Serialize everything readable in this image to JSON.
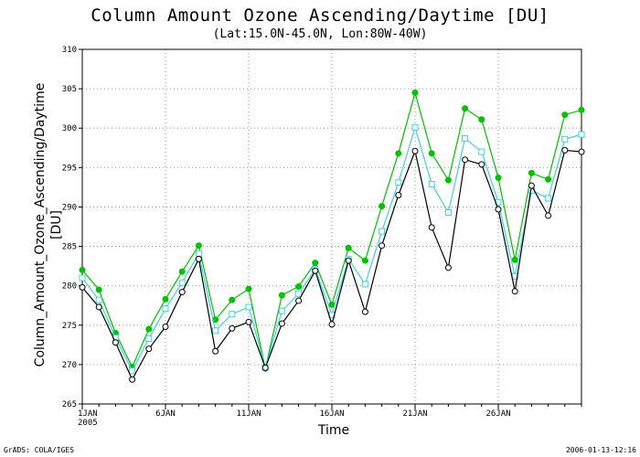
{
  "header": {
    "title": "Column Amount Ozone Ascending/Daytime [DU]",
    "subtitle": "(Lat:15.0N-45.0N, Lon:80W-40W)"
  },
  "footer": {
    "left": "GrADS: COLA/IGES",
    "right": "2006-01-13-12:16"
  },
  "chart_data": {
    "type": "line",
    "xlabel": "Time",
    "ylabel": "Column_Amount_Ozone_Ascending/Daytime",
    "ylabel_unit": "[DU]",
    "ylim": [
      265,
      310
    ],
    "yticks": [
      265,
      270,
      275,
      280,
      285,
      290,
      295,
      300,
      305,
      310
    ],
    "xlim": [
      1,
      31
    ],
    "xticks": [
      {
        "day": 1,
        "label": "1JAN",
        "sublabel": "2005"
      },
      {
        "day": 6,
        "label": "6JAN",
        "sublabel": ""
      },
      {
        "day": 11,
        "label": "11JAN",
        "sublabel": ""
      },
      {
        "day": 16,
        "label": "16JAN",
        "sublabel": ""
      },
      {
        "day": 21,
        "label": "21JAN",
        "sublabel": ""
      },
      {
        "day": 26,
        "label": "26JAN",
        "sublabel": ""
      }
    ],
    "grid": true,
    "x": [
      1,
      2,
      3,
      4,
      5,
      6,
      7,
      8,
      9,
      10,
      11,
      12,
      13,
      14,
      15,
      16,
      17,
      18,
      19,
      20,
      21,
      22,
      23,
      24,
      25,
      26,
      27,
      28,
      29,
      30,
      31
    ],
    "series": [
      {
        "color": "#00c000",
        "marker": "filled-circle",
        "values": [
          282.0,
          279.5,
          274.0,
          269.7,
          274.5,
          278.3,
          281.8,
          285.1,
          275.7,
          278.2,
          279.6,
          269.5,
          278.8,
          279.9,
          282.9,
          277.6,
          284.8,
          283.2,
          290.1,
          296.8,
          304.5,
          296.8,
          293.4,
          302.5,
          301.1,
          293.7,
          283.3,
          294.3,
          293.5,
          301.7,
          302.3
        ]
      },
      {
        "color": "#40d0e0",
        "marker": "open-square",
        "values": [
          281.0,
          278.2,
          273.4,
          269.2,
          273.3,
          277.1,
          280.4,
          284.1,
          274.3,
          276.4,
          277.3,
          269.6,
          276.8,
          279.0,
          282.1,
          276.3,
          283.4,
          280.2,
          286.9,
          293.1,
          300.1,
          292.9,
          289.3,
          298.7,
          297.0,
          290.6,
          281.2,
          292.1,
          291.1,
          298.6,
          299.2
        ]
      },
      {
        "color": "#000000",
        "marker": "open-circle",
        "values": [
          279.8,
          277.3,
          272.8,
          268.1,
          272.0,
          274.8,
          279.2,
          283.4,
          271.7,
          274.6,
          275.4,
          269.6,
          275.2,
          278.1,
          281.9,
          275.1,
          283.2,
          276.7,
          285.1,
          291.5,
          297.1,
          287.4,
          282.3,
          296.0,
          295.4,
          289.7,
          279.3,
          292.7,
          288.9,
          297.2,
          297.0
        ]
      }
    ]
  }
}
